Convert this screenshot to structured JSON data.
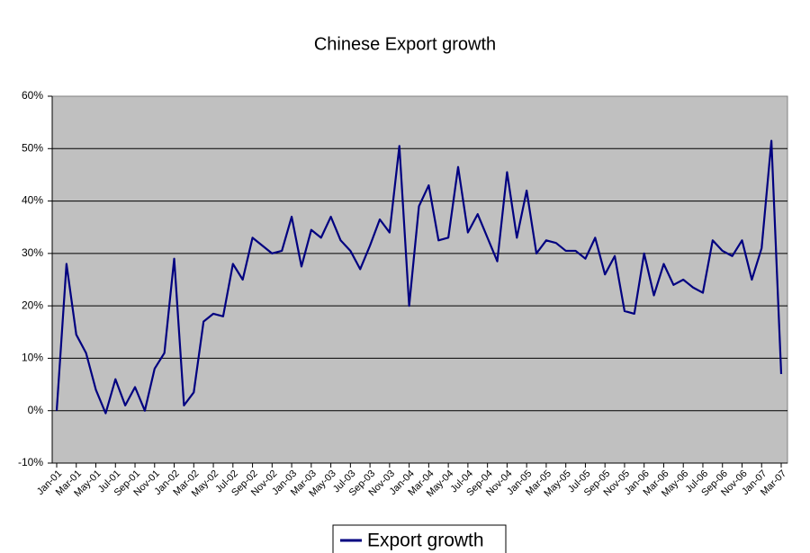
{
  "chart_data": {
    "type": "line",
    "title": "Chinese Export growth",
    "categories": [
      "Jan-01",
      null,
      "Mar-01",
      null,
      "May-01",
      null,
      "Jul-01",
      null,
      "Sep-01",
      null,
      "Nov-01",
      null,
      "Jan-02",
      null,
      "Mar-02",
      null,
      "May-02",
      null,
      "Jul-02",
      null,
      "Sep-02",
      null,
      "Nov-02",
      null,
      "Jan-03",
      null,
      "Mar-03",
      null,
      "May-03",
      null,
      "Jul-03",
      null,
      "Sep-03",
      null,
      "Nov-03",
      null,
      "Jan-04",
      null,
      "Mar-04",
      null,
      "May-04",
      null,
      "Jul-04",
      null,
      "Sep-04",
      null,
      "Nov-04",
      null,
      "Jan-05",
      null,
      "Mar-05",
      null,
      "May-05",
      null,
      "Jul-05",
      null,
      "Sep-05",
      null,
      "Nov-05",
      null,
      "Jan-06",
      null,
      "Mar-06",
      null,
      "May-06",
      null,
      "Jul-06",
      null,
      "Sep-06",
      null,
      "Nov-06",
      null,
      "Jan-07",
      null,
      "Mar-07"
    ],
    "series": [
      {
        "name": "Export growth",
        "color": "#000080",
        "values": [
          0,
          28,
          14.5,
          11,
          4,
          -0.5,
          6,
          1,
          4.5,
          0,
          8,
          11,
          29,
          1,
          3.5,
          17,
          18.5,
          18,
          28,
          25,
          33,
          31.5,
          30,
          30.5,
          37,
          27.5,
          34.5,
          33,
          37,
          32.5,
          30.5,
          27,
          31.5,
          36.5,
          34,
          50.5,
          20,
          39,
          43,
          32.5,
          33,
          46.5,
          34,
          37.5,
          33,
          28.5,
          45.5,
          33,
          42,
          30,
          32.5,
          32,
          30.5,
          30.5,
          29,
          33,
          26,
          29.5,
          19,
          18.5,
          30,
          22,
          28,
          24,
          25,
          23.5,
          22.5,
          32.5,
          30.5,
          29.5,
          32.5,
          25,
          31,
          51.5,
          7
        ]
      }
    ],
    "ylim": [
      -10,
      60
    ],
    "yticks": [
      {
        "value": -10,
        "label": "-10%"
      },
      {
        "value": 0,
        "label": "0%"
      },
      {
        "value": 10,
        "label": "10%"
      },
      {
        "value": 20,
        "label": "20%"
      },
      {
        "value": 30,
        "label": "30%"
      },
      {
        "value": 40,
        "label": "40%"
      },
      {
        "value": 50,
        "label": "50%"
      },
      {
        "value": 60,
        "label": "60%"
      }
    ],
    "grid": true,
    "legend": "bottom"
  }
}
